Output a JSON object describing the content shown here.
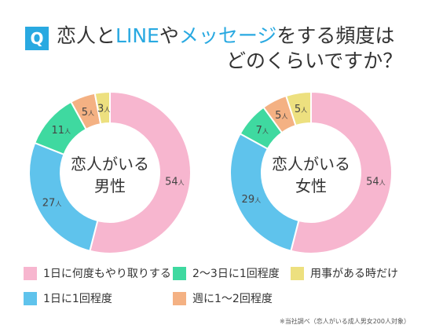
{
  "header": {
    "badge": "Q",
    "title_part1": "恋人と",
    "title_part2": "LINE",
    "title_part3": "や",
    "title_part4": "メッセージ",
    "title_part5": "をする頻度は",
    "title_line2": "どのくらいですか？"
  },
  "colors": {
    "accent": "#29a9e1",
    "several_times_daily": "#f7b6cf",
    "every_2_3_days": "#3fd9a0",
    "only_when_needed": "#ede07f",
    "once_daily": "#5fc3ec",
    "once_twice_weekly": "#f4b183"
  },
  "chart_data": [
    {
      "type": "pie",
      "center_label_line1": "恋人がいる",
      "center_label_line2": "男性",
      "unit": "人",
      "slices": [
        {
          "category": "1日に何度もやり取りする",
          "value": 54,
          "color": "#f7b6cf"
        },
        {
          "category": "1日に1回程度",
          "value": 27,
          "color": "#5fc3ec"
        },
        {
          "category": "2〜3日に1回程度",
          "value": 11,
          "color": "#3fd9a0"
        },
        {
          "category": "週に1〜2回程度",
          "value": 5,
          "color": "#f4b183"
        },
        {
          "category": "用事がある時だけ",
          "value": 3,
          "color": "#ede07f"
        }
      ]
    },
    {
      "type": "pie",
      "center_label_line1": "恋人がいる",
      "center_label_line2": "女性",
      "unit": "人",
      "slices": [
        {
          "category": "1日に何度もやり取りする",
          "value": 54,
          "color": "#f7b6cf"
        },
        {
          "category": "1日に1回程度",
          "value": 29,
          "color": "#5fc3ec"
        },
        {
          "category": "2〜3日に1回程度",
          "value": 7,
          "color": "#3fd9a0"
        },
        {
          "category": "週に1〜2回程度",
          "value": 5,
          "color": "#f4b183"
        },
        {
          "category": "用事がある時だけ",
          "value": 5,
          "color": "#ede07f"
        }
      ]
    }
  ],
  "legend": [
    {
      "label": "1日に何度もやり取りする",
      "color": "#f7b6cf"
    },
    {
      "label": "2〜3日に1回程度",
      "color": "#3fd9a0"
    },
    {
      "label": "用事がある時だけ",
      "color": "#ede07f"
    },
    {
      "label": "1日に1回程度",
      "color": "#5fc3ec"
    },
    {
      "label": "週に1〜2回程度",
      "color": "#f4b183"
    }
  ],
  "footnote": "※当社調べ（恋人がいる成人男女200人対象）"
}
